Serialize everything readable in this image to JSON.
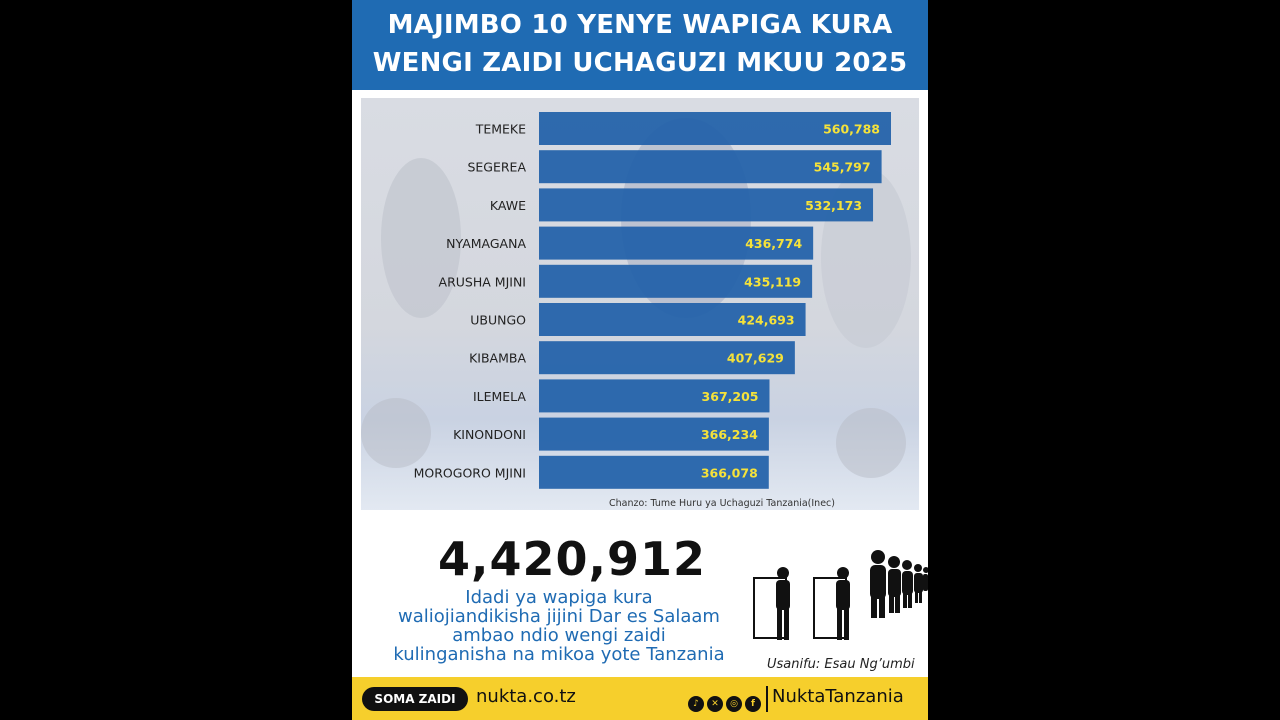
{
  "header": {
    "title_line1": "MAJIMBO 10 YENYE WAPIGA KURA",
    "title_line2": "WENGI ZAIDI UCHAGUZI MKUU 2025"
  },
  "chart_data": {
    "type": "bar",
    "orientation": "horizontal",
    "categories": [
      "TEMEKE",
      "SEGEREA",
      "KAWE",
      "NYAMAGANA",
      "ARUSHA MJINI",
      "UBUNGO",
      "KIBAMBA",
      "ILEMELA",
      "KINONDONI",
      "MOROGORO MJINI"
    ],
    "values": [
      560788,
      545797,
      532173,
      436774,
      435119,
      424693,
      407629,
      367205,
      366234,
      366078
    ],
    "value_labels": [
      "560,788",
      "545,797",
      "532,173",
      "436,774",
      "435,119",
      "424,693",
      "407,629",
      "367,205",
      "366,234",
      "366,078"
    ],
    "title": "MAJIMBO 10 YENYE WAPIGA KURA WENGI ZAIDI UCHAGUZI MKUU 2025",
    "xlabel": "",
    "ylabel": "",
    "xlim": [
      0,
      560788
    ],
    "grid": false,
    "bar_color": "#1f5fa8",
    "label_color": "#f5e23a"
  },
  "source": "Chanzo: Tume Huru ya Uchaguzi Tanzania(Inec)",
  "summary": {
    "total": "4,420,912",
    "caption_lines": [
      "Idadi ya  wapiga kura",
      "waliojiandikisha jijini Dar es Salaam",
      "ambao ndio wengi zaidi",
      "kulinganisha na mikoa yote Tanzania"
    ],
    "credit": "Usanifu: Esau Ng’umbi"
  },
  "footer": {
    "button_label": "SOMA ZAIDI",
    "website": "nukta.co.tz",
    "socials": [
      {
        "icon": "tiktok-icon",
        "glyph": "♪"
      },
      {
        "icon": "x-icon",
        "glyph": "✕"
      },
      {
        "icon": "instagram-icon",
        "glyph": "◎"
      },
      {
        "icon": "facebook-icon",
        "glyph": "f"
      }
    ],
    "handle": "NuktaTanzania"
  },
  "colors": {
    "header_bg": "#1f6bb3",
    "footer_bg": "#f6cf2c",
    "caption": "#1f6bb3"
  }
}
